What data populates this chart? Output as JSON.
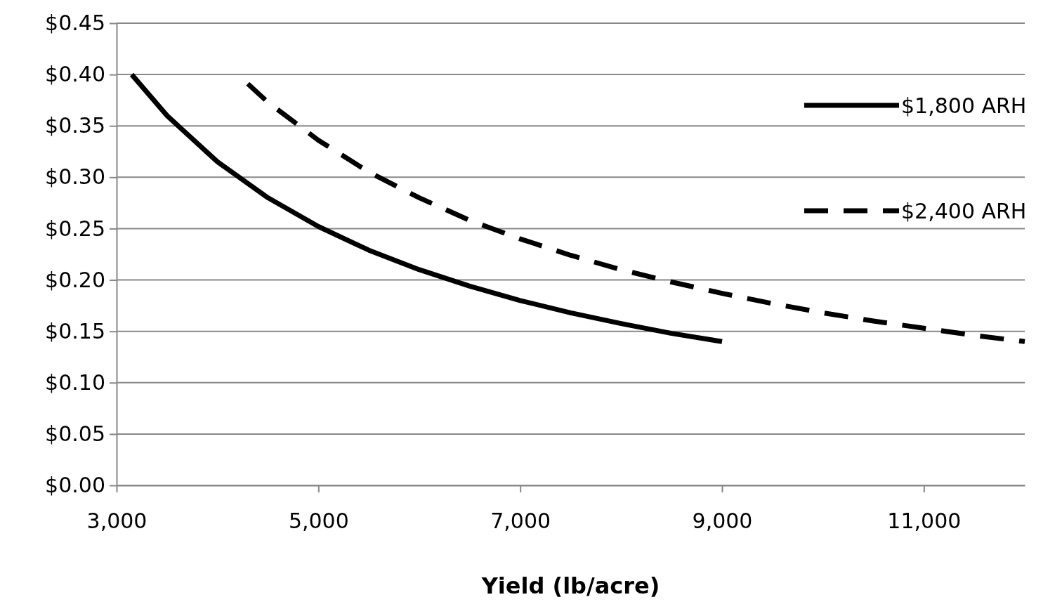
{
  "chart_data": {
    "type": "line",
    "xlabel": "Yield (lb/acre)",
    "xlim": [
      3000,
      12000
    ],
    "xticks": [
      {
        "value": 3000,
        "label": "3,000"
      },
      {
        "value": 5000,
        "label": "5,000"
      },
      {
        "value": 7000,
        "label": "7,000"
      },
      {
        "value": 9000,
        "label": "9,000"
      },
      {
        "value": 11000,
        "label": "11,000"
      }
    ],
    "ylim": [
      0,
      0.45
    ],
    "yticks": [
      {
        "value": 0,
        "label": "$0.00"
      },
      {
        "value": 0.05,
        "label": "$0.05"
      },
      {
        "value": 0.1,
        "label": "$0.10"
      },
      {
        "value": 0.15,
        "label": "$0.15"
      },
      {
        "value": 0.2,
        "label": "$0.20"
      },
      {
        "value": 0.25,
        "label": "$0.25"
      },
      {
        "value": 0.3,
        "label": "$0.30"
      },
      {
        "value": 0.35,
        "label": "$0.35"
      },
      {
        "value": 0.4,
        "label": "$0.40"
      },
      {
        "value": 0.45,
        "label": "$0.45"
      }
    ],
    "grid": "y",
    "legend": "right",
    "marker": "none",
    "series": [
      {
        "name": "$1,800 ARH",
        "color": "#000000",
        "line_style": "solid",
        "x": [
          3150,
          3500,
          4000,
          4500,
          5000,
          5500,
          6000,
          6500,
          7000,
          7500,
          8000,
          8500,
          9000
        ],
        "values": [
          0.4,
          0.36,
          0.315,
          0.28,
          0.252,
          0.229,
          0.21,
          0.194,
          0.18,
          0.168,
          0.1575,
          0.148,
          0.14
        ]
      },
      {
        "name": "$2,400 ARH",
        "color": "#000000",
        "line_style": "dashed",
        "x": [
          4300,
          4500,
          5000,
          5500,
          6000,
          6500,
          7000,
          7500,
          8000,
          8500,
          9000,
          9500,
          10000,
          10500,
          11000,
          11500,
          12000
        ],
        "values": [
          0.391,
          0.373,
          0.336,
          0.305,
          0.28,
          0.258,
          0.24,
          0.224,
          0.21,
          0.198,
          0.187,
          0.177,
          0.168,
          0.16,
          0.153,
          0.146,
          0.14
        ]
      }
    ]
  }
}
